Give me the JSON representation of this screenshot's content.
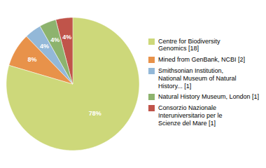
{
  "chart_data": {
    "type": "pie",
    "categories": [
      "Centre for Biodiversity\nGenomics [18]",
      "Mined from GenBank, NCBI [2]",
      "Smithsonian Institution,\nNational Museum of Natural\nHistory... [1]",
      "Natural History Museum, London [1]",
      "Consorzio Nazionale\nInteruniversitario per le\nScienze del Mare [1]"
    ],
    "values": [
      78,
      8,
      4,
      4,
      4
    ],
    "value_labels": [
      "78%",
      "8%",
      "4%",
      "4%",
      "4%"
    ],
    "colors": [
      "#cdd87a",
      "#e8924a",
      "#93b8d8",
      "#8db36e",
      "#c0544a"
    ],
    "data_labels": true,
    "legend": "right"
  }
}
